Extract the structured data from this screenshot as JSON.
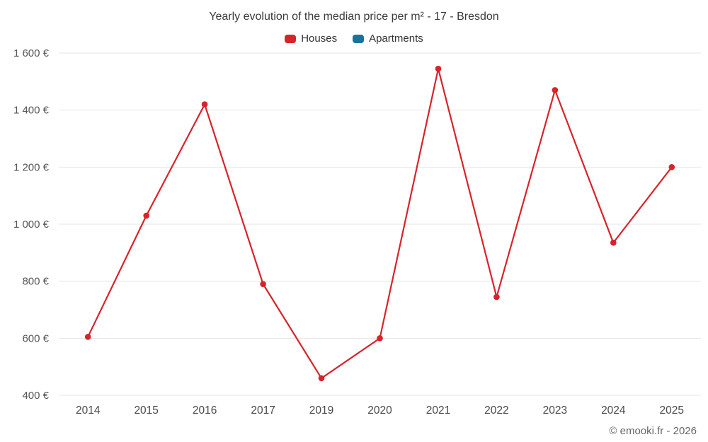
{
  "title": "Yearly evolution of the median price per m² - 17 - Bresdon",
  "legend": [
    {
      "label": "Houses",
      "color": "#d8232a"
    },
    {
      "label": "Apartments",
      "color": "#17739e"
    }
  ],
  "footer": "© emooki.fr - 2026",
  "colors": {
    "grid": "#e6e6e6",
    "axis_label": "#555555",
    "title_text": "#3a3a3a"
  },
  "chart_data": {
    "type": "line",
    "title": "Yearly evolution of the median price per m² - 17 - Bresdon",
    "categories": [
      "2014",
      "2015",
      "2016",
      "2017",
      "2019",
      "2020",
      "2021",
      "2022",
      "2023",
      "2024",
      "2025"
    ],
    "series": [
      {
        "name": "Houses",
        "color": "#d8232a",
        "values": [
          605,
          1030,
          1420,
          790,
          460,
          600,
          1545,
          745,
          1470,
          935,
          1200
        ]
      },
      {
        "name": "Apartments",
        "color": "#17739e",
        "values": []
      }
    ],
    "xlabel": "",
    "ylabel": "",
    "ylim": [
      400,
      1600
    ],
    "ytick_step": 200,
    "ytick_labels": [
      "400 €",
      "600 €",
      "800 €",
      "1 000 €",
      "1 200 €",
      "1 400 €",
      "1 600 €"
    ],
    "grid": "horizontal",
    "legend_position": "top"
  }
}
